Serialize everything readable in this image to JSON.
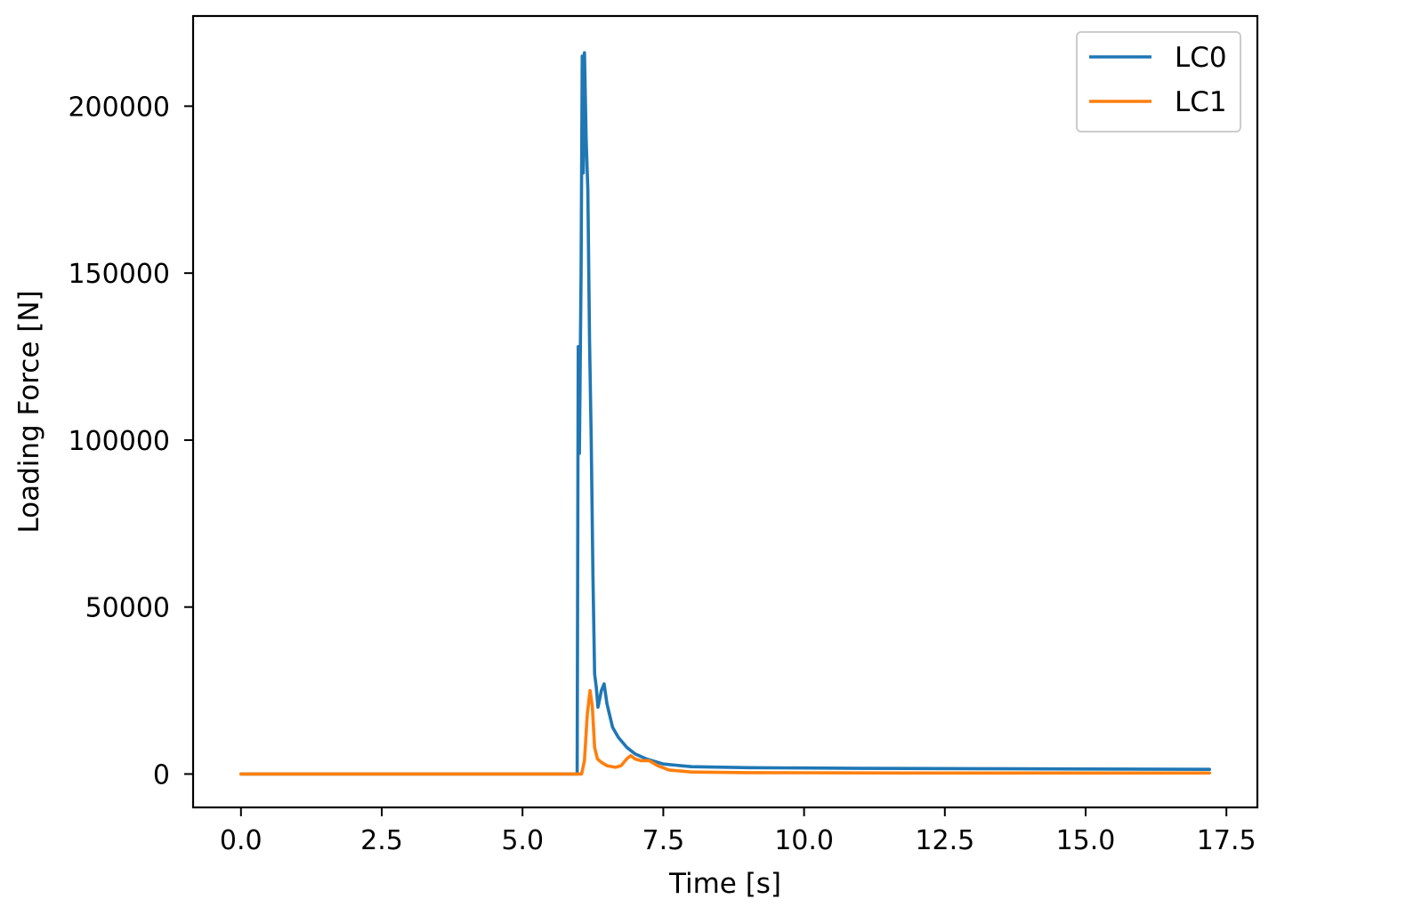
{
  "chart_data": {
    "type": "line",
    "title": "",
    "xlabel": "Time [s]",
    "ylabel": "Loading Force [N]",
    "xlim": [
      -0.85,
      18.05
    ],
    "ylim": [
      -10000,
      227000
    ],
    "x_ticks": [
      {
        "value": 0.0,
        "label": "0.0"
      },
      {
        "value": 2.5,
        "label": "2.5"
      },
      {
        "value": 5.0,
        "label": "5.0"
      },
      {
        "value": 7.5,
        "label": "7.5"
      },
      {
        "value": 10.0,
        "label": "10.0"
      },
      {
        "value": 12.5,
        "label": "12.5"
      },
      {
        "value": 15.0,
        "label": "15.0"
      },
      {
        "value": 17.5,
        "label": "17.5"
      }
    ],
    "y_ticks": [
      {
        "value": 0,
        "label": "0"
      },
      {
        "value": 50000,
        "label": "50000"
      },
      {
        "value": 100000,
        "label": "100000"
      },
      {
        "value": 150000,
        "label": "150000"
      },
      {
        "value": 200000,
        "label": "200000"
      }
    ],
    "grid": false,
    "legend_position": "top-right",
    "series": [
      {
        "name": "LC0",
        "color": "#1f77b4",
        "points": [
          [
            0.0,
            0
          ],
          [
            5.5,
            0
          ],
          [
            5.97,
            0
          ],
          [
            5.99,
            128000
          ],
          [
            6.01,
            96000
          ],
          [
            6.04,
            150000
          ],
          [
            6.06,
            215000
          ],
          [
            6.08,
            180000
          ],
          [
            6.1,
            216000
          ],
          [
            6.13,
            190000
          ],
          [
            6.16,
            175000
          ],
          [
            6.19,
            130000
          ],
          [
            6.22,
            100000
          ],
          [
            6.25,
            60000
          ],
          [
            6.28,
            30000
          ],
          [
            6.31,
            26000
          ],
          [
            6.34,
            20000
          ],
          [
            6.4,
            25000
          ],
          [
            6.45,
            27000
          ],
          [
            6.5,
            21000
          ],
          [
            6.6,
            14000
          ],
          [
            6.7,
            11000
          ],
          [
            6.85,
            8000
          ],
          [
            7.0,
            6000
          ],
          [
            7.2,
            4500
          ],
          [
            7.5,
            3000
          ],
          [
            8.0,
            2200
          ],
          [
            9.0,
            1900
          ],
          [
            11.0,
            1700
          ],
          [
            13.0,
            1600
          ],
          [
            15.0,
            1500
          ],
          [
            17.2,
            1400
          ]
        ]
      },
      {
        "name": "LC1",
        "color": "#ff7f0e",
        "points": [
          [
            0.0,
            0
          ],
          [
            6.05,
            0
          ],
          [
            6.1,
            4000
          ],
          [
            6.15,
            18000
          ],
          [
            6.2,
            25000
          ],
          [
            6.24,
            20000
          ],
          [
            6.28,
            8000
          ],
          [
            6.33,
            4500
          ],
          [
            6.4,
            3500
          ],
          [
            6.5,
            2500
          ],
          [
            6.65,
            2000
          ],
          [
            6.75,
            2500
          ],
          [
            6.85,
            4500
          ],
          [
            6.92,
            5500
          ],
          [
            7.0,
            4500
          ],
          [
            7.1,
            4000
          ],
          [
            7.25,
            4000
          ],
          [
            7.4,
            2500
          ],
          [
            7.6,
            1200
          ],
          [
            8.0,
            600
          ],
          [
            9.0,
            400
          ],
          [
            12.0,
            300
          ],
          [
            17.2,
            300
          ]
        ]
      }
    ]
  }
}
